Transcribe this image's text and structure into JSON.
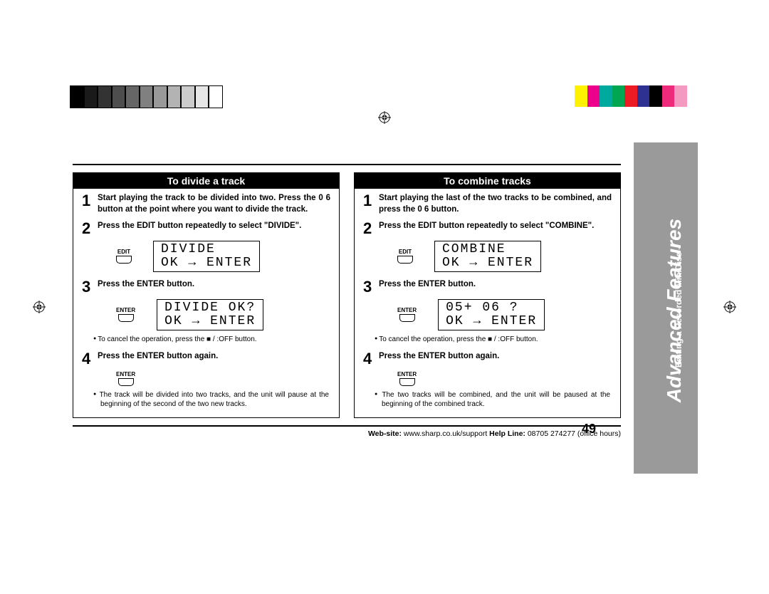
{
  "color_bar": [
    "#000000",
    "#1a1a1a",
    "#333333",
    "#4d4d4d",
    "#666666",
    "#808080",
    "#999999",
    "#b3b3b3",
    "#cccccc",
    "#ffffff",
    "#ffffff",
    "#ffffff",
    "#ffffff",
    "#ffffff",
    "#ffffff",
    "#ffffff",
    "#ffffff",
    "#ffffff",
    "#ffffff",
    "#ffffff",
    "#ffffff",
    "#ffffff",
    "#ffffff",
    "#ffffff",
    "#ffffff",
    "#ffffff",
    "#ffffff",
    "#ffffff",
    "#ffffff",
    "#ffffff",
    "#ffffff",
    "#ffffff",
    "#ffffff",
    "#f4ec00",
    "#d93a8e",
    "#00a6a0",
    "#009639",
    "#ed1c24",
    "#0033a0",
    "#000000",
    "#e31c79",
    "#f7a8c4",
    "#ffffff"
  ],
  "color_bar_visible": [
    "#000000",
    "#1a1a1a",
    "#333333",
    "#4d4d4d",
    "#666666",
    "#808080",
    "#999999",
    "#b3b3b3",
    "#cccccc",
    "#e6e6e6",
    "#ffffff"
  ],
  "color_bar_right": [
    "#fff200",
    "#ec008c",
    "#00a99d",
    "#00a651",
    "#ed1c24",
    "#2e3192",
    "#000000",
    "#ee2a7b",
    "#f49ac1",
    "#ffffff"
  ],
  "sidebar": {
    "title": "Advanced Features",
    "subtitle": "– Editing a Recorded MiniDisc –",
    "bg": "#9a9a9a",
    "fg": "#ffffff"
  },
  "page_number": "49",
  "left": {
    "heading": "To divide a track",
    "steps": [
      "Start playing the track to be divided into two. Press the 0 6 button at the point where you want to divide the track.",
      "Press the EDIT button repeatedly to select \"DIVIDE\".",
      "Press the ENTER button.",
      "Press the ENTER button again."
    ],
    "lcd1_l1": "DIVIDE",
    "lcd1_l2": "OK → ENTER",
    "lcd2_l1": "DIVIDE OK?",
    "lcd2_l2": "OK → ENTER",
    "btn1": "EDIT",
    "btn2": "ENTER",
    "btn3": "ENTER",
    "note1": "To cancel the operation, press the ■ /  :OFF button.",
    "note2": "The track will be divided into two tracks, and the unit will pause at the beginning of the second of the two new tracks."
  },
  "right": {
    "heading": "To combine tracks",
    "steps": [
      "Start playing the last of the two tracks to be combined, and press the 0 6 button.",
      "Press the EDIT button repeatedly to select \"COMBINE\".",
      "Press the ENTER button.",
      "Press the ENTER button again."
    ],
    "lcd1_l1": "COMBINE",
    "lcd1_l2": "OK → ENTER",
    "lcd2_l1": "05+ 06 ?",
    "lcd2_l2": "OK → ENTER",
    "btn1": "EDIT",
    "btn2": "ENTER",
    "btn3": "ENTER",
    "note1": "To cancel the operation, press the ■ /  :OFF button.",
    "note2": "The two tracks will be combined, and the unit will be paused at the beginning of the combined track."
  },
  "footer": {
    "web_label": "Web-site:",
    "web_value": " www.sharp.co.uk/support   ",
    "help_label": "Help Line:",
    "help_value": " 08705 274277 (office hours)"
  }
}
